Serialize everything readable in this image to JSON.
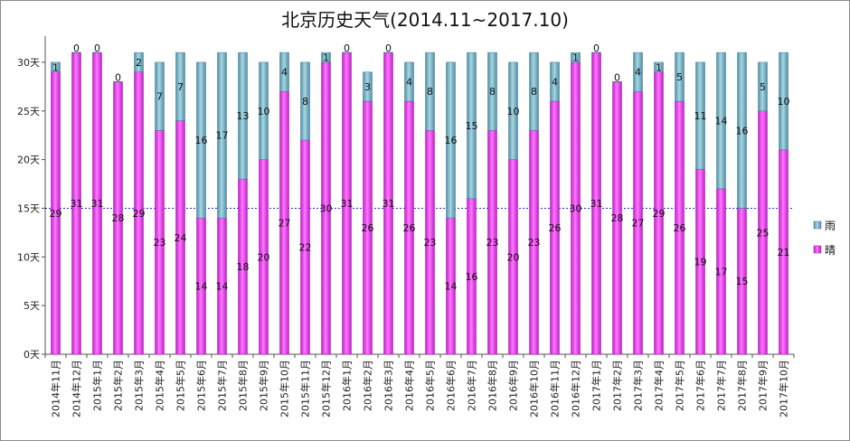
{
  "chart_data": {
    "type": "bar",
    "stacked": true,
    "title": "北京历史天气(2014.11~2017.10)",
    "categories": [
      "2014年11月",
      "2014年12月",
      "2015年1月",
      "2015年2月",
      "2015年3月",
      "2015年4月",
      "2015年5月",
      "2015年6月",
      "2015年7月",
      "2015年8月",
      "2015年9月",
      "2015年10月",
      "2015年11月",
      "2015年12月",
      "2016年1月",
      "2016年2月",
      "2016年3月",
      "2016年4月",
      "2016年5月",
      "2016年6月",
      "2016年7月",
      "2016年8月",
      "2016年9月",
      "2016年10月",
      "2016年11月",
      "2016年12月",
      "2017年1月",
      "2017年2月",
      "2017年3月",
      "2017年4月",
      "2017年5月",
      "2017年6月",
      "2017年7月",
      "2017年8月",
      "2017年9月",
      "2017年10月"
    ],
    "series": [
      {
        "name": "晴",
        "color": "#e040e8",
        "values": [
          29,
          31,
          31,
          28,
          29,
          23,
          24,
          14,
          14,
          18,
          20,
          27,
          22,
          30,
          31,
          26,
          31,
          26,
          23,
          14,
          16,
          23,
          20,
          23,
          26,
          30,
          31,
          28,
          27,
          29,
          26,
          19,
          17,
          15,
          25,
          21
        ]
      },
      {
        "name": "雨",
        "color": "#6aa3b8",
        "values": [
          1,
          0,
          0,
          0,
          2,
          7,
          7,
          16,
          17,
          13,
          10,
          4,
          8,
          1,
          0,
          3,
          0,
          4,
          8,
          16,
          15,
          8,
          10,
          8,
          4,
          1,
          0,
          0,
          4,
          1,
          5,
          11,
          14,
          16,
          5,
          10
        ]
      }
    ],
    "yticks": [
      "0天",
      "5天",
      "10天",
      "15天",
      "20天",
      "25天",
      "30天"
    ],
    "ylim": [
      0,
      31
    ],
    "reference_line": 15,
    "legend_position": "right",
    "grid": false
  }
}
